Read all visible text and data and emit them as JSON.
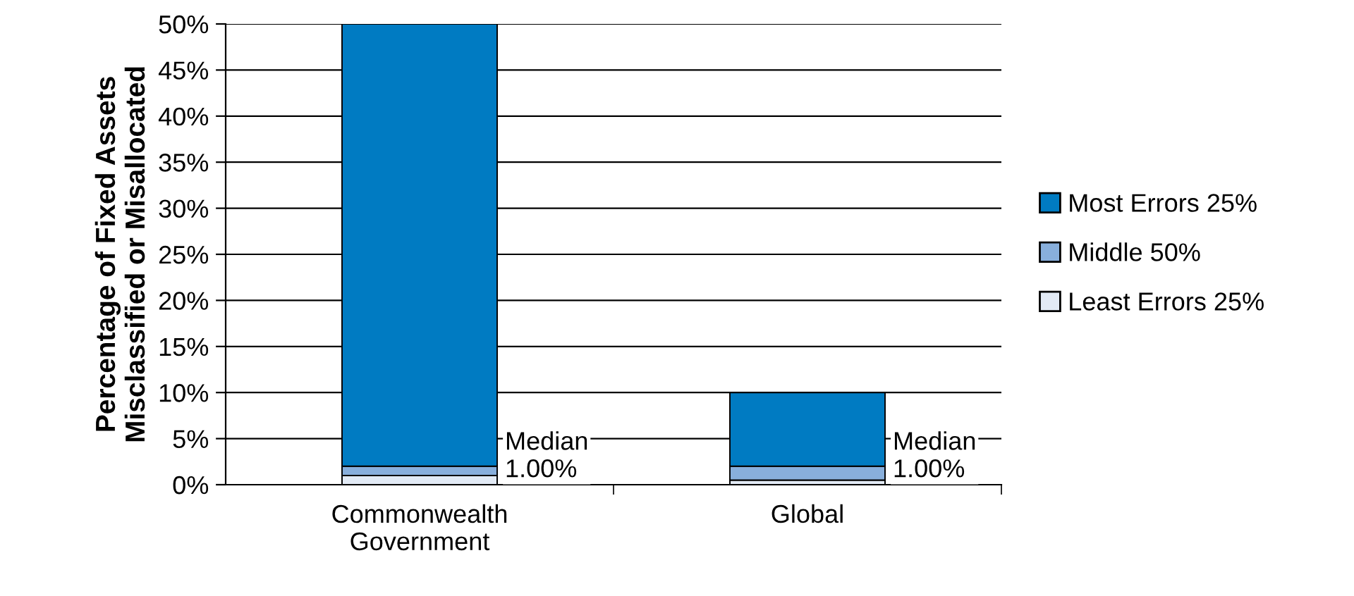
{
  "chart_data": {
    "type": "bar",
    "stacked": true,
    "ylabel": "Percentage of Fixed Assets\nMisclassified or Misallocated",
    "categories": [
      "Commonwealth\nGovernment",
      "Global"
    ],
    "series": [
      {
        "name": "Least Errors 25%",
        "color": "#e2eaf5",
        "values": [
          1,
          0.5
        ]
      },
      {
        "name": "Middle 50%",
        "color": "#88afdc",
        "values": [
          1,
          1.5
        ]
      },
      {
        "name": "Most Errors 25%",
        "color": "#007bc2",
        "values": [
          48,
          8
        ]
      }
    ],
    "ylim": [
      0,
      50
    ],
    "yticks": [
      {
        "value": 0,
        "label": "0%"
      },
      {
        "value": 5,
        "label": "5%"
      },
      {
        "value": 10,
        "label": "10%"
      },
      {
        "value": 15,
        "label": "15%"
      },
      {
        "value": 20,
        "label": "20%"
      },
      {
        "value": 25,
        "label": "25%"
      },
      {
        "value": 30,
        "label": "30%"
      },
      {
        "value": 35,
        "label": "35%"
      },
      {
        "value": 40,
        "label": "40%"
      },
      {
        "value": 45,
        "label": "45%"
      },
      {
        "value": 50,
        "label": "50%"
      }
    ],
    "grid": "y",
    "legend": "right",
    "annotations": [
      "Median\n1.00%",
      "Median\n1.00%"
    ]
  }
}
